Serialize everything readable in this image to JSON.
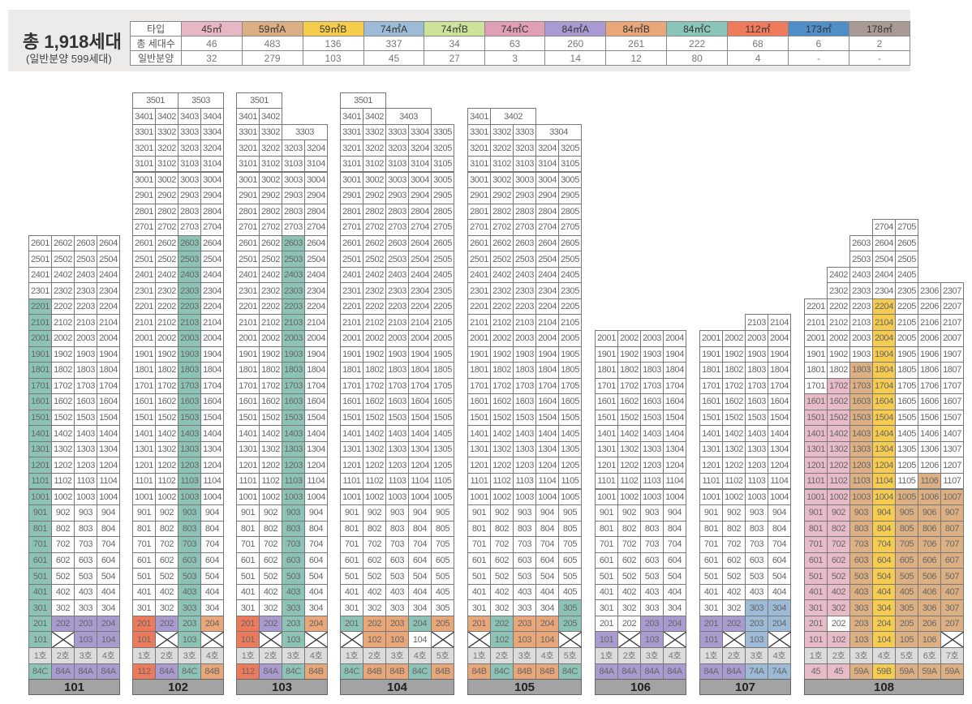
{
  "summary": {
    "title": "총 1,918세대",
    "subtitle": "(일반분양 599세대)"
  },
  "type_table": {
    "row_labels": [
      "타입",
      "총 세대수",
      "일반분양"
    ],
    "types": [
      {
        "name": "45㎡",
        "total": "46",
        "general": "32",
        "color": "#e7b8c3"
      },
      {
        "name": "59㎡A",
        "total": "483",
        "general": "279",
        "color": "#dcae84"
      },
      {
        "name": "59㎡B",
        "total": "136",
        "general": "103",
        "color": "#f5cd4a"
      },
      {
        "name": "74㎡A",
        "total": "337",
        "general": "45",
        "color": "#9dbad6"
      },
      {
        "name": "74㎡B",
        "total": "34",
        "general": "27",
        "color": "#cde39a"
      },
      {
        "name": "74㎡C",
        "total": "63",
        "general": "3",
        "color": "#e19fb5"
      },
      {
        "name": "84㎡A",
        "total": "260",
        "general": "14",
        "color": "#a99bd1"
      },
      {
        "name": "84㎡B",
        "total": "261",
        "general": "12",
        "color": "#e9a678"
      },
      {
        "name": "84㎡C",
        "total": "222",
        "general": "80",
        "color": "#8bc4b9"
      },
      {
        "name": "112㎡",
        "total": "68",
        "general": "4",
        "color": "#ef7a5c"
      },
      {
        "name": "173㎡",
        "total": "6",
        "general": "-",
        "color": "#4f8ec6"
      },
      {
        "name": "178㎡",
        "total": "2",
        "general": "-",
        "color": "#a89a94"
      }
    ]
  },
  "cell_colors": {
    "45": "#e8bcc7",
    "59A": "#dcb083",
    "59B": "#f5cc4f",
    "74A": "#9dbad6",
    "84A": "#a99bd0",
    "84B": "#e9a678",
    "84C": "#8cc3b6",
    "112": "#ee7a5c",
    "none": "#ffffff"
  },
  "buildings": [
    {
      "name": "101",
      "cols": 4,
      "full_floors": 26,
      "top_rows": [],
      "ho": [
        "1호",
        "2호",
        "3호",
        "4호"
      ],
      "types": [
        "84C",
        "84A",
        "84A",
        "84A"
      ],
      "colored": [
        {
          "t": "84C",
          "c": [
            1
          ],
          "f": [
            1,
            22
          ]
        },
        {
          "t": "84A",
          "c": [
            2,
            3,
            4
          ],
          "f": [
            2,
            2
          ]
        },
        {
          "t": "84A",
          "c": [
            3,
            4
          ],
          "f": [
            1,
            1
          ]
        }
      ],
      "x_cells": [
        [
          1,
          2
        ]
      ]
    },
    {
      "name": "102",
      "cols": 4,
      "full_floors": 34,
      "top_rows": [
        {
          "f": 35,
          "cells": [
            [
              "3501",
              1,
              2
            ],
            [
              "3503",
              3,
              2
            ]
          ]
        }
      ],
      "ho": [
        "1호",
        "2호",
        "3호",
        "4호"
      ],
      "types": [
        "112",
        "84A",
        "84C",
        "84B"
      ],
      "colored": [
        {
          "t": "84C",
          "c": [
            3
          ],
          "f": [
            1,
            26
          ]
        },
        {
          "t": "112",
          "c": [
            1
          ],
          "f": [
            1,
            2
          ]
        },
        {
          "t": "84A",
          "c": [
            2
          ],
          "f": [
            2,
            2
          ]
        },
        {
          "t": "84B",
          "c": [
            4
          ],
          "f": [
            2,
            2
          ]
        }
      ],
      "x_cells": [
        [
          1,
          2
        ],
        [
          1,
          4
        ]
      ]
    },
    {
      "name": "103",
      "cols": 4,
      "full_floors": 32,
      "top_rows": [
        {
          "f": 33,
          "cells": [
            [
              "3301",
              1,
              1
            ],
            [
              "3302",
              2,
              1
            ],
            [
              "3303",
              3,
              2
            ]
          ]
        },
        {
          "f": 34,
          "cells": [
            [
              "3401",
              1,
              1
            ],
            [
              "3402",
              2,
              1
            ]
          ]
        },
        {
          "f": 35,
          "cells": [
            [
              "3501",
              1,
              2
            ]
          ]
        }
      ],
      "ho": [
        "1호",
        "2호",
        "3호",
        "4호"
      ],
      "types": [
        "112",
        "84A",
        "84C",
        "84B"
      ],
      "colored": [
        {
          "t": "84C",
          "c": [
            3
          ],
          "f": [
            1,
            26
          ]
        },
        {
          "t": "112",
          "c": [
            1
          ],
          "f": [
            1,
            2
          ]
        },
        {
          "t": "84A",
          "c": [
            2
          ],
          "f": [
            2,
            2
          ]
        },
        {
          "t": "84B",
          "c": [
            4
          ],
          "f": [
            2,
            2
          ]
        }
      ],
      "x_cells": [
        [
          1,
          2
        ],
        [
          1,
          4
        ]
      ]
    },
    {
      "name": "104",
      "cols": 5,
      "full_floors": 33,
      "top_rows": [
        {
          "f": 34,
          "cells": [
            [
              "3401",
              1,
              1
            ],
            [
              "3402",
              2,
              1
            ],
            [
              "3403",
              3,
              2
            ]
          ]
        },
        {
          "f": 35,
          "cells": [
            [
              "3501",
              1,
              2
            ]
          ]
        }
      ],
      "ho": [
        "1호",
        "2호",
        "3호",
        "4호",
        "5호"
      ],
      "types": [
        "84C",
        "84B",
        "84B",
        "84C",
        "84B"
      ],
      "colored": [
        {
          "t": "84C",
          "c": [
            1,
            4
          ],
          "f": [
            2,
            2
          ]
        },
        {
          "t": "84B",
          "c": [
            2,
            3,
            5
          ],
          "f": [
            2,
            2
          ]
        },
        {
          "t": "84B",
          "c": [
            2,
            3
          ],
          "f": [
            1,
            1
          ]
        }
      ],
      "x_cells": [
        [
          1,
          1
        ],
        [
          1,
          5
        ]
      ]
    },
    {
      "name": "105",
      "cols": 5,
      "full_floors": 32,
      "top_rows": [
        {
          "f": 33,
          "cells": [
            [
              "3301",
              1,
              1
            ],
            [
              "3302",
              2,
              1
            ],
            [
              "3303",
              3,
              1
            ],
            [
              "3304",
              4,
              2
            ]
          ]
        },
        {
          "f": 34,
          "cells": [
            [
              "3401",
              1,
              1
            ],
            [
              "3402",
              2,
              2
            ]
          ]
        }
      ],
      "ho": [
        "1호",
        "2호",
        "3호",
        "4호",
        "5호"
      ],
      "types": [
        "84B",
        "84C",
        "84B",
        "84B",
        "84C"
      ],
      "colored": [
        {
          "t": "84C",
          "c": [
            5
          ],
          "f": [
            2,
            3
          ]
        },
        {
          "t": "84B",
          "c": [
            1,
            3,
            4
          ],
          "f": [
            2,
            2
          ]
        },
        {
          "t": "84C",
          "c": [
            2
          ],
          "f": [
            1,
            2
          ]
        },
        {
          "t": "84B",
          "c": [
            3,
            4
          ],
          "f": [
            1,
            1
          ]
        }
      ],
      "x_cells": [
        [
          1,
          1
        ],
        [
          1,
          5
        ]
      ]
    },
    {
      "name": "106",
      "cols": 4,
      "full_floors": 20,
      "top_rows": [],
      "ho": [
        "1호",
        "2호",
        "3호",
        "4호"
      ],
      "types": [
        "84A",
        "84A",
        "84A",
        "84A"
      ],
      "colored": [
        {
          "t": "84A",
          "c": [
            3,
            4
          ],
          "f": [
            2,
            2
          ]
        },
        {
          "t": "84A",
          "c": [
            1,
            3
          ],
          "f": [
            1,
            1
          ]
        }
      ],
      "x_cells": [
        [
          1,
          2
        ],
        [
          1,
          4
        ]
      ]
    },
    {
      "name": "107",
      "cols": 4,
      "full_floors": 20,
      "top_rows": [
        {
          "f": 21,
          "cells": [
            [
              "2103",
              3,
              1
            ],
            [
              "2104",
              4,
              1
            ]
          ]
        }
      ],
      "ho": [
        "1호",
        "2호",
        "3호",
        "4호"
      ],
      "types": [
        "84A",
        "84A",
        "74A",
        "74A"
      ],
      "colored": [
        {
          "t": "74A",
          "c": [
            3,
            4
          ],
          "f": [
            1,
            3
          ]
        },
        {
          "t": "84A",
          "c": [
            1,
            2
          ],
          "f": [
            2,
            2
          ]
        },
        {
          "t": "84A",
          "c": [
            1
          ],
          "f": [
            1,
            1
          ]
        }
      ],
      "x_cells": [
        [
          1,
          2
        ],
        [
          1,
          4
        ]
      ]
    },
    {
      "name": "108",
      "cols": 7,
      "full_floors": 22,
      "top_rows": [
        {
          "f": 23,
          "cells": [
            [
              "2302",
              2,
              1
            ],
            [
              "2303",
              3,
              1
            ],
            [
              "2304",
              4,
              1
            ],
            [
              "2305",
              5,
              1
            ],
            [
              "2306",
              6,
              1
            ],
            [
              "2307",
              7,
              1
            ]
          ]
        },
        {
          "f": 24,
          "cells": [
            [
              "2402",
              2,
              1
            ],
            [
              "2403",
              3,
              1
            ],
            [
              "2404",
              4,
              1
            ],
            [
              "2405",
              5,
              1
            ]
          ]
        },
        {
          "f": 25,
          "cells": [
            [
              "2503",
              3,
              1
            ],
            [
              "2504",
              4,
              1
            ],
            [
              "2505",
              5,
              1
            ]
          ]
        },
        {
          "f": 26,
          "cells": [
            [
              "2603",
              3,
              1
            ],
            [
              "2604",
              4,
              1
            ],
            [
              "2605",
              5,
              1
            ]
          ]
        },
        {
          "f": 27,
          "cells": [
            [
              "2704",
              4,
              1
            ],
            [
              "2705",
              5,
              1
            ]
          ]
        }
      ],
      "ho": [
        "1호",
        "2호",
        "3호",
        "4호",
        "5호",
        "6호",
        "7호"
      ],
      "types": [
        "45",
        "45",
        "59A",
        "59B",
        "59A",
        "59A",
        "59A"
      ],
      "colored": [
        {
          "t": "45",
          "c": [
            1
          ],
          "f": [
            1,
            16
          ]
        },
        {
          "t": "45",
          "c": [
            2
          ],
          "f": [
            1,
            17
          ]
        },
        {
          "t": "none",
          "c": [
            2
          ],
          "f": [
            2,
            2
          ]
        },
        {
          "t": "59A",
          "c": [
            3
          ],
          "f": [
            1,
            18
          ]
        },
        {
          "t": "59B",
          "c": [
            4
          ],
          "f": [
            1,
            22
          ]
        },
        {
          "t": "59A",
          "c": [
            5
          ],
          "f": [
            1,
            10
          ]
        },
        {
          "t": "59A",
          "c": [
            6
          ],
          "f": [
            1,
            11
          ]
        },
        {
          "t": "59A",
          "c": [
            7
          ],
          "f": [
            2,
            10
          ]
        }
      ],
      "x_cells": [
        [
          1,
          7
        ]
      ]
    }
  ]
}
